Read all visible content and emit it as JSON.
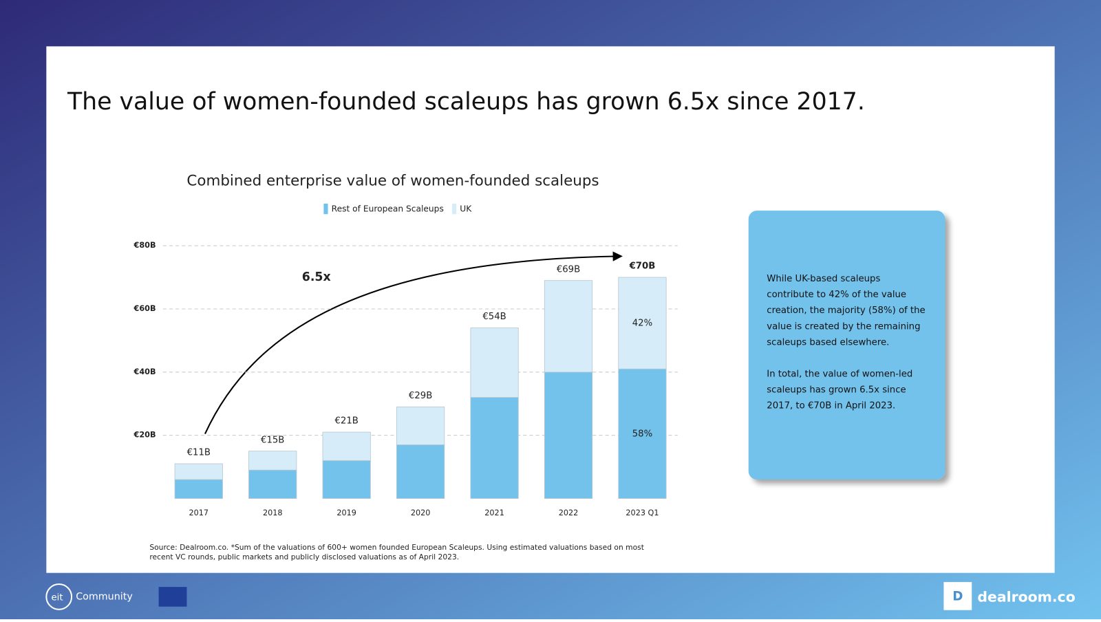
{
  "header": {
    "title": "The value of women-founded scaleups has grown 6.5x since 2017."
  },
  "chart_data": {
    "type": "bar",
    "stacked": true,
    "title": "Combined enterprise  value of women-founded  scaleups",
    "categories": [
      "2017",
      "2018",
      "2019",
      "2020",
      "2021",
      "2022",
      "2023 Q1"
    ],
    "series": [
      {
        "name": "Rest of European Scaleups",
        "color": "#73c2ec",
        "values": [
          6,
          9,
          12,
          17,
          32,
          40,
          41
        ]
      },
      {
        "name": "UK",
        "color": "#d6ecf9",
        "values": [
          5,
          6,
          9,
          12,
          22,
          29,
          29
        ]
      }
    ],
    "totals": {
      "values": [
        11,
        15,
        21,
        29,
        54,
        69,
        70
      ],
      "value_labels": [
        "€11B",
        "€15B",
        "€21B",
        "€29B",
        "€54B",
        "€69B",
        "€70B"
      ]
    },
    "annotations": [
      "6.5x",
      "58%",
      "42%"
    ],
    "ylim": [
      0,
      80
    ],
    "yticks": [
      {
        "value": 20,
        "label": "€20B"
      },
      {
        "value": 40,
        "label": "€40B"
      },
      {
        "value": 60,
        "label": "€60B"
      },
      {
        "value": 80,
        "label": "€80B"
      }
    ],
    "grid": true,
    "legend": "top"
  },
  "info_box": {
    "paragraphs": [
      [
        "While UK-based scaleups",
        "contribute to 42% of the value",
        "creation, the majority (58%) of the",
        "value is created by the remaining",
        "scaleups based elsewhere."
      ],
      [
        "In total, the value of women-led",
        "scaleups has grown 6.5x since",
        "2017, to €70B in April 2023."
      ]
    ]
  },
  "source": [
    "Source: Dealroom.co. *Sum of the valuations of 600+ women founded European Scaleups. Using estimated valuations based on most",
    "recent VC rounds, public markets and publicly disclosed valuations as of April 2023."
  ],
  "footer": {
    "left": "Community",
    "right": "dealroom.co"
  }
}
